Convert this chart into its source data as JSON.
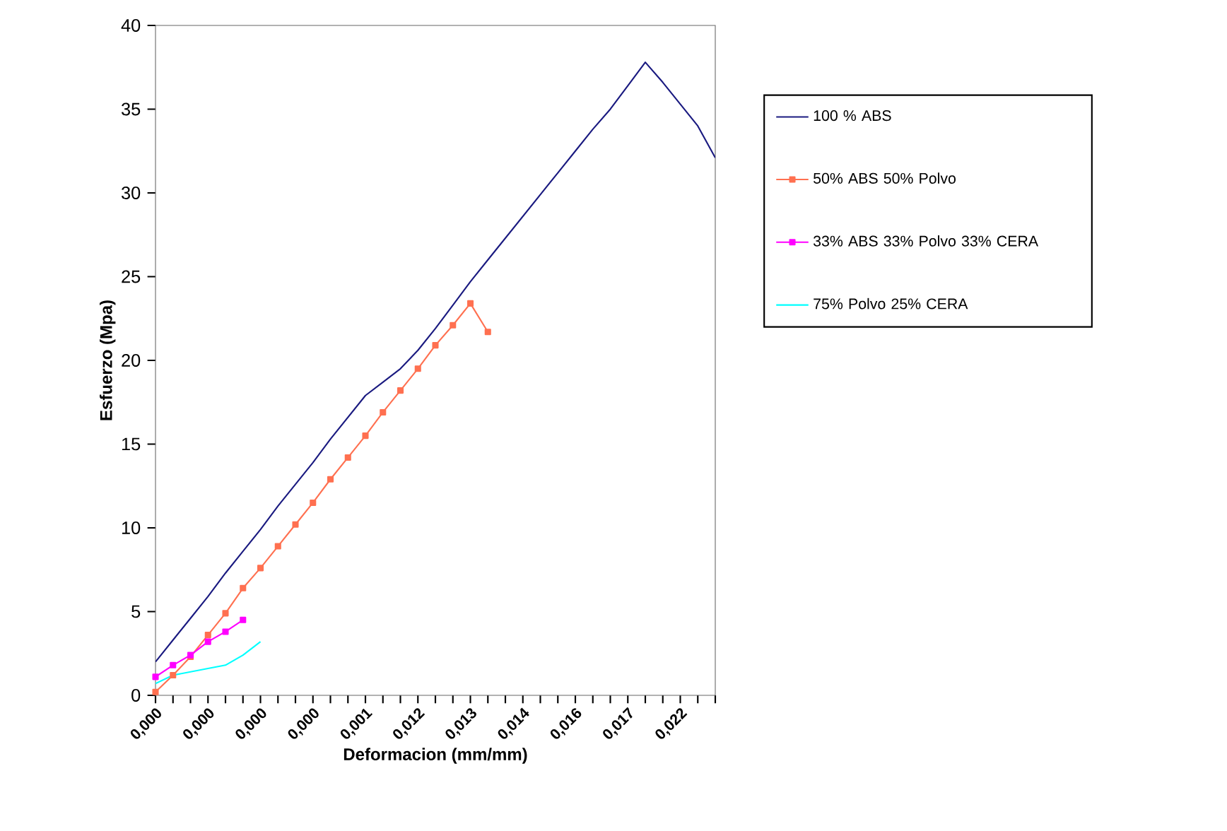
{
  "chart_data": {
    "type": "line",
    "xlabel": "Deformacion (mm/mm)",
    "ylabel": "Esfuerzo (Mpa)",
    "categories": [
      "0,000",
      null,
      null,
      "0,000",
      null,
      null,
      "0,000",
      null,
      null,
      "0,000",
      null,
      null,
      "0,001",
      null,
      null,
      "0,012",
      null,
      null,
      "0,013",
      null,
      null,
      "0,014",
      null,
      null,
      "0,016",
      null,
      null,
      "0,017",
      null,
      null,
      "0,022",
      null,
      null
    ],
    "series": [
      {
        "name": "100 % ABS",
        "color": "#1a1a80",
        "marker": "none",
        "values": [
          2.0,
          3.3,
          4.6,
          5.9,
          7.3,
          8.6,
          9.9,
          11.3,
          12.6,
          13.9,
          15.3,
          16.6,
          17.9,
          18.7,
          19.5,
          20.6,
          21.9,
          23.3,
          24.7,
          26.0,
          27.3,
          28.6,
          29.9,
          31.2,
          32.5,
          33.8,
          35.0,
          36.4,
          37.8,
          36.6,
          35.3,
          34.0,
          32.1
        ]
      },
      {
        "name": "50% ABS  50% Polvo",
        "color": "#ff7050",
        "marker": "square",
        "values": [
          0.2,
          1.2,
          2.3,
          3.6,
          4.9,
          6.4,
          7.6,
          8.9,
          10.2,
          11.5,
          12.9,
          14.2,
          15.5,
          16.9,
          18.2,
          19.5,
          20.9,
          22.1,
          23.4,
          21.7,
          null,
          null,
          null,
          null,
          null,
          null,
          null,
          null,
          null,
          null,
          null,
          null,
          null
        ]
      },
      {
        "name": "33% ABS 33% Polvo 33% CERA",
        "color": "#ff00ff",
        "marker": "square",
        "values": [
          1.1,
          1.8,
          2.4,
          3.2,
          3.8,
          4.5,
          null,
          null,
          null,
          null,
          null,
          null,
          null,
          null,
          null,
          null,
          null,
          null,
          null,
          null,
          null,
          null,
          null,
          null,
          null,
          null,
          null,
          null,
          null,
          null,
          null,
          null,
          null
        ]
      },
      {
        "name": "75% Polvo 25% CERA",
        "color": "#00ffff",
        "marker": "none",
        "values": [
          0.7,
          1.2,
          1.4,
          1.6,
          1.8,
          2.4,
          3.2,
          null,
          null,
          null,
          null,
          null,
          null,
          null,
          null,
          null,
          null,
          null,
          null,
          null,
          null,
          null,
          null,
          null,
          null,
          null,
          null,
          null,
          null,
          null,
          null,
          null,
          null
        ]
      }
    ],
    "ylim": [
      0,
      40
    ],
    "yticks": [
      0,
      5,
      10,
      15,
      20,
      25,
      30,
      35,
      40
    ],
    "grid": false,
    "legend": "right"
  }
}
